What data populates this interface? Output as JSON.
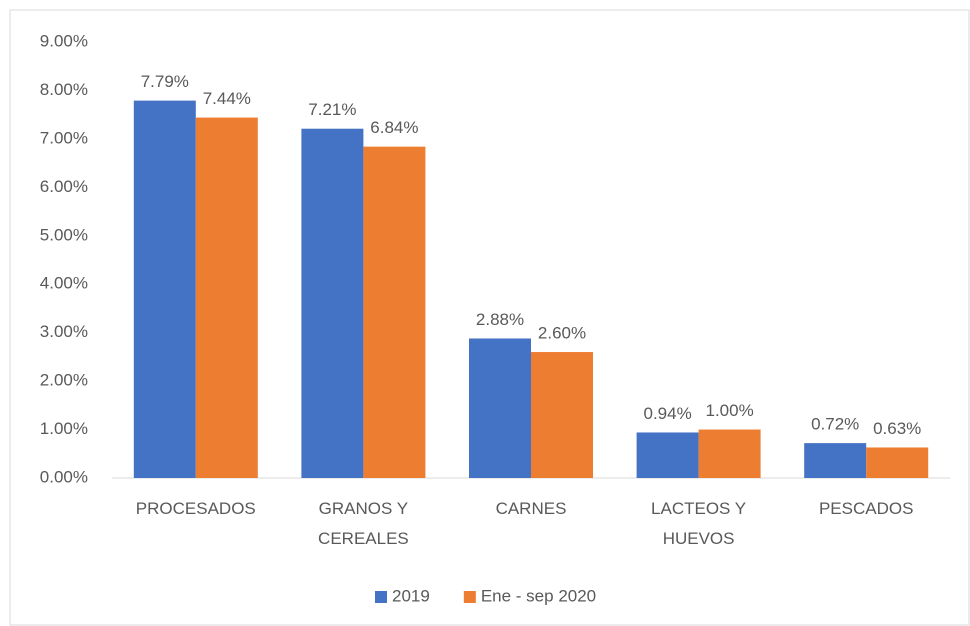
{
  "chart_data": {
    "type": "bar",
    "categories": [
      "PROCESADOS",
      "GRANOS Y CEREALES",
      "CARNES",
      "LACTEOS Y HUEVOS",
      "PESCADOS"
    ],
    "series": [
      {
        "name": "2019",
        "color": "#4472c4",
        "values": [
          7.79,
          7.21,
          2.88,
          0.94,
          0.72
        ],
        "value_labels": [
          "7.79%",
          "7.21%",
          "2.88%",
          "0.94%",
          "0.72%"
        ]
      },
      {
        "name": "Ene - sep 2020",
        "color": "#ed7d31",
        "values": [
          7.44,
          6.84,
          2.6,
          1.0,
          0.63
        ],
        "value_labels": [
          "7.44%",
          "6.84%",
          "2.60%",
          "1.00%",
          "0.63%"
        ]
      }
    ],
    "ylim": [
      0,
      9
    ],
    "yticks": [
      {
        "value": 0,
        "label": "0.00%"
      },
      {
        "value": 1,
        "label": "1.00%"
      },
      {
        "value": 2,
        "label": "2.00%"
      },
      {
        "value": 3,
        "label": "3.00%"
      },
      {
        "value": 4,
        "label": "4.00%"
      },
      {
        "value": 5,
        "label": "5.00%"
      },
      {
        "value": 6,
        "label": "6.00%"
      },
      {
        "value": 7,
        "label": "7.00%"
      },
      {
        "value": 8,
        "label": "8.00%"
      },
      {
        "value": 9,
        "label": "9.00%"
      }
    ],
    "grid": false,
    "legend": "bottom"
  }
}
